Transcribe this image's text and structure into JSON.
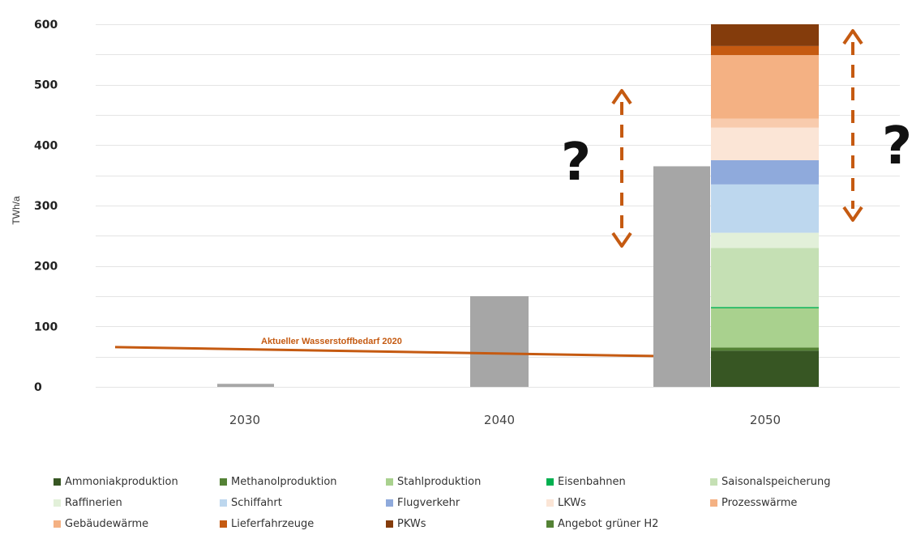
{
  "chart_data": {
    "type": "bar",
    "stacked": true,
    "title": "",
    "xlabel": "",
    "ylabel": "TWh/a",
    "ylim": [
      0,
      600
    ],
    "yticks": [
      "0",
      "100",
      "200",
      "300",
      "400",
      "500",
      "600"
    ],
    "categories": [
      "2030",
      "2040",
      "2050"
    ],
    "grid": true,
    "legend_position": "bottom",
    "supply": {
      "name": "",
      "color": "#a6a6a6",
      "values": [
        5,
        150,
        365
      ]
    },
    "demand_2050": [
      {
        "name": "Ammoniakproduktion",
        "value": 60,
        "color": "#375623"
      },
      {
        "name": "Methanolproduktion",
        "value": 5,
        "color": "#548235"
      },
      {
        "name": "Stahlproduktion",
        "value": 65,
        "color": "#a9d18e"
      },
      {
        "name": "Eisenbahnen",
        "value": 2,
        "color": "#00b050"
      },
      {
        "name": "Saisonalspeicherung",
        "value": 98,
        "color": "#c5e0b4"
      },
      {
        "name": "Raffinerien",
        "value": 25,
        "color": "#e2f0d9"
      },
      {
        "name": "Schiffahrt",
        "value": 80,
        "color": "#bdd7ee"
      },
      {
        "name": "Flugverkehr",
        "value": 40,
        "color": "#8faadc"
      },
      {
        "name": "LKWs",
        "value": 54,
        "color": "#fbe5d6"
      },
      {
        "name": "Prozesswärme",
        "value": 15,
        "color": "#f8cbad"
      },
      {
        "name": "Gebäudewärme",
        "value": 105,
        "color": "#f4b183"
      },
      {
        "name": "Lieferfahrzeuge",
        "value": 15,
        "color": "#c55a11"
      },
      {
        "name": "PKWs",
        "value": 36,
        "color": "#843c0c"
      }
    ],
    "reference_line": {
      "label": "Aktueller Wasserstoffbedarf 2020",
      "value": 55,
      "color": "#c55a11"
    },
    "annotations": [
      "?",
      "?"
    ],
    "legend": [
      {
        "label": "Ammoniakproduktion",
        "color": "#375623"
      },
      {
        "label": "Methanolproduktion",
        "color": "#548235"
      },
      {
        "label": "Stahlproduktion",
        "color": "#a9d18e"
      },
      {
        "label": "Eisenbahnen",
        "color": "#00b050"
      },
      {
        "label": "Saisonalspeicherung",
        "color": "#c5e0b4"
      },
      {
        "label": "Raffinerien",
        "color": "#e2f0d9"
      },
      {
        "label": "Schiffahrt",
        "color": "#bdd7ee"
      },
      {
        "label": "Flugverkehr",
        "color": "#8faadc"
      },
      {
        "label": "LKWs",
        "color": "#fbe5d6"
      },
      {
        "label": "Prozesswärme",
        "color": "#f4b183"
      },
      {
        "label": "Gebäudewärme",
        "color": "#f4b183"
      },
      {
        "label": "Lieferfahrzeuge",
        "color": "#c55a11"
      },
      {
        "label": "PKWs",
        "color": "#843c0c"
      },
      {
        "label": "Angebot grüner H2",
        "color": "#548235"
      }
    ]
  }
}
